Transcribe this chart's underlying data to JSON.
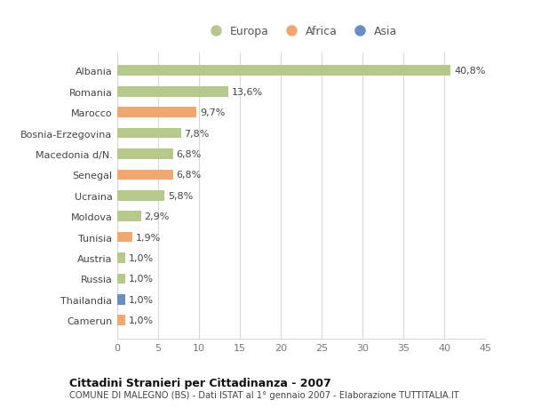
{
  "countries": [
    "Albania",
    "Romania",
    "Marocco",
    "Bosnia-Erzegovina",
    "Macedonia d/N.",
    "Senegal",
    "Ucraina",
    "Moldova",
    "Tunisia",
    "Austria",
    "Russia",
    "Thailandia",
    "Camerun"
  ],
  "values": [
    40.8,
    13.6,
    9.7,
    7.8,
    6.8,
    6.8,
    5.8,
    2.9,
    1.9,
    1.0,
    1.0,
    1.0,
    1.0
  ],
  "labels": [
    "40,8%",
    "13,6%",
    "9,7%",
    "7,8%",
    "6,8%",
    "6,8%",
    "5,8%",
    "2,9%",
    "1,9%",
    "1,0%",
    "1,0%",
    "1,0%",
    "1,0%"
  ],
  "continents": [
    "Europa",
    "Europa",
    "Africa",
    "Europa",
    "Europa",
    "Africa",
    "Europa",
    "Europa",
    "Africa",
    "Europa",
    "Europa",
    "Asia",
    "Africa"
  ],
  "colors": {
    "Europa": "#b5c98a",
    "Africa": "#f0a870",
    "Asia": "#6b8dc5"
  },
  "xlim": [
    0,
    45
  ],
  "xticks": [
    0,
    5,
    10,
    15,
    20,
    25,
    30,
    35,
    40,
    45
  ],
  "title": "Cittadini Stranieri per Cittadinanza - 2007",
  "subtitle": "COMUNE DI MALEGNO (BS) - Dati ISTAT al 1° gennaio 2007 - Elaborazione TUTTITALIA.IT",
  "background_color": "#ffffff",
  "grid_color": "#d8d8d8"
}
